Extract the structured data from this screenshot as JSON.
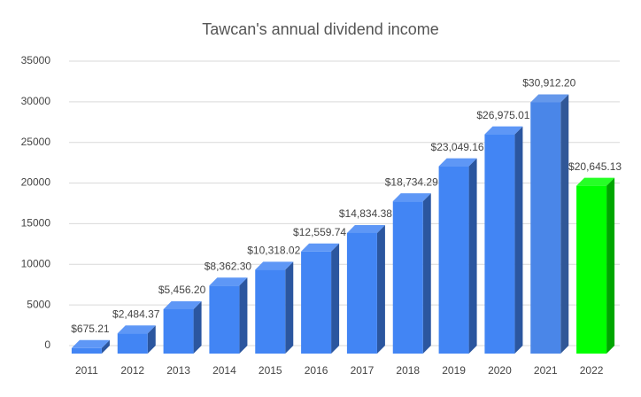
{
  "chart_data": {
    "type": "bar3d",
    "title": "Tawcan's annual dividend income",
    "categories": [
      "2011",
      "2012",
      "2013",
      "2014",
      "2015",
      "2016",
      "2017",
      "2018",
      "2019",
      "2020",
      "2021",
      "2022"
    ],
    "values": [
      675.21,
      2484.37,
      5456.2,
      8362.3,
      10318.02,
      12559.74,
      14834.38,
      18734.29,
      23049.16,
      26975.01,
      30912.2,
      20645.13
    ],
    "value_labels": [
      "$675.21",
      "$2,484.37",
      "$5,456.20",
      "$8,362.30",
      "$10,318.02",
      "$12,559.74",
      "$14,834.38",
      "$18,734.29",
      "$23,049.16",
      "$26,975.01",
      "$30,912.20",
      "$20,645.13"
    ],
    "colors": [
      "#4285f4",
      "#4285f4",
      "#4285f4",
      "#4285f4",
      "#4285f4",
      "#4285f4",
      "#4285f4",
      "#4285f4",
      "#4285f4",
      "#4285f4",
      "#4a86e8",
      "#00ff00"
    ],
    "ylim": [
      0,
      35000
    ],
    "yticks": [
      0,
      5000,
      10000,
      15000,
      20000,
      25000,
      30000,
      35000
    ],
    "grid": true
  }
}
